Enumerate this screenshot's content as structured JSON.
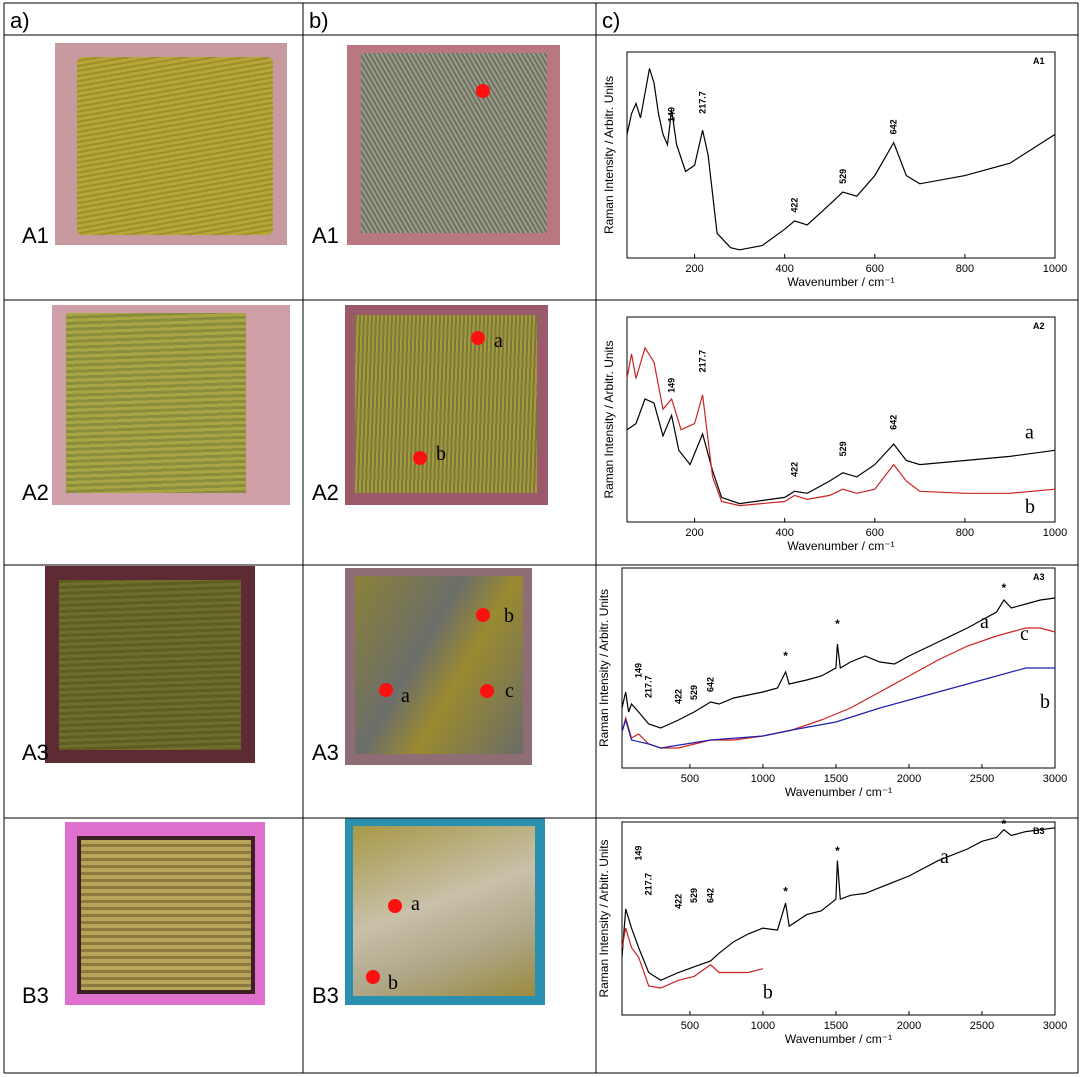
{
  "header": [
    "a)",
    "b)",
    "c)"
  ],
  "rows": [
    {
      "label_a": "A1",
      "label_b": "A1",
      "spots": []
    },
    {
      "label_a": "A2",
      "label_b": "A2",
      "spots": [
        "a",
        "b"
      ]
    },
    {
      "label_a": "A3",
      "label_b": "A3",
      "spots": [
        "b",
        "a",
        "c"
      ]
    },
    {
      "label_a": "B3",
      "label_b": "B3",
      "spots": [
        "a",
        "b"
      ]
    }
  ],
  "chart_data": [
    {
      "type": "line",
      "title": "A1",
      "xlabel": "Wavenumber / cm⁻¹",
      "ylabel": "Raman Intensity / Arbitr. Units",
      "xlim": [
        50,
        1000
      ],
      "xticks": [
        200,
        400,
        600,
        800,
        1000
      ],
      "ylim": [
        0,
        100
      ],
      "series": [
        {
          "color": "#000000",
          "x": [
            50,
            60,
            70,
            80,
            90,
            100,
            110,
            120,
            130,
            140,
            149,
            160,
            180,
            200,
            217.7,
            230,
            250,
            280,
            300,
            350,
            400,
            422,
            450,
            500,
            529,
            560,
            600,
            642,
            670,
            700,
            800,
            900,
            1000
          ],
          "values": [
            60,
            70,
            75,
            68,
            80,
            92,
            85,
            70,
            60,
            55,
            72,
            55,
            42,
            45,
            62,
            50,
            12,
            5,
            4,
            6,
            14,
            18,
            16,
            26,
            32,
            30,
            40,
            56,
            40,
            36,
            40,
            46,
            60
          ]
        }
      ],
      "annotations": [
        {
          "x": 149,
          "y": 66,
          "text": "149"
        },
        {
          "x": 217.7,
          "y": 70,
          "text": "217.7"
        },
        {
          "x": 422,
          "y": 22,
          "text": "422"
        },
        {
          "x": 529,
          "y": 36,
          "text": "529"
        },
        {
          "x": 642,
          "y": 60,
          "text": "642"
        }
      ]
    },
    {
      "type": "line",
      "title": "A2",
      "xlabel": "Wavenumber / cm⁻¹",
      "ylabel": "Raman Intensity / Arbitr. Units",
      "xlim": [
        50,
        1000
      ],
      "xticks": [
        200,
        400,
        600,
        800,
        1000
      ],
      "ylim": [
        0,
        100
      ],
      "series": [
        {
          "name": "a",
          "color": "#000000",
          "x": [
            50,
            70,
            90,
            110,
            130,
            149,
            165,
            190,
            217.7,
            240,
            260,
            300,
            400,
            422,
            450,
            500,
            529,
            560,
            600,
            642,
            670,
            700,
            800,
            900,
            1000
          ],
          "values": [
            45,
            48,
            60,
            58,
            42,
            52,
            35,
            28,
            43,
            25,
            12,
            9,
            12,
            15,
            14,
            20,
            24,
            22,
            28,
            38,
            30,
            28,
            30,
            32,
            35
          ]
        },
        {
          "name": "b",
          "color": "#cc2222",
          "x": [
            50,
            60,
            70,
            90,
            110,
            130,
            149,
            170,
            200,
            217.7,
            240,
            260,
            300,
            400,
            422,
            450,
            500,
            529,
            560,
            600,
            642,
            670,
            700,
            800,
            900,
            1000
          ],
          "values": [
            70,
            82,
            70,
            85,
            78,
            55,
            60,
            45,
            48,
            62,
            22,
            10,
            8,
            10,
            13,
            11,
            13,
            16,
            14,
            16,
            28,
            20,
            15,
            14,
            14,
            16
          ]
        }
      ],
      "annotations": [
        {
          "x": 149,
          "y": 63,
          "text": "149"
        },
        {
          "x": 217.7,
          "y": 73,
          "text": "217.7"
        },
        {
          "x": 422,
          "y": 22,
          "text": "422"
        },
        {
          "x": 529,
          "y": 32,
          "text": "529"
        },
        {
          "x": 642,
          "y": 45,
          "text": "642"
        }
      ]
    },
    {
      "type": "line",
      "title": "A3",
      "xlabel": "Wavenumber / cm⁻¹",
      "ylabel": "Raman Intensity / Arbitr. Units",
      "xlim": [
        35,
        3000
      ],
      "xticks": [
        500,
        1000,
        1500,
        2000,
        2500,
        3000
      ],
      "ylim": [
        0,
        100
      ],
      "series": [
        {
          "name": "a",
          "color": "#000000",
          "x": [
            35,
            60,
            80,
            100,
            149,
            217.7,
            300,
            422,
            529,
            642,
            700,
            800,
            1000,
            1100,
            1155,
            1180,
            1300,
            1400,
            1500,
            1510,
            1530,
            1600,
            1700,
            1800,
            1900,
            2000,
            2200,
            2400,
            2500,
            2600,
            2650,
            2700,
            2800,
            2900,
            3000
          ],
          "values": [
            30,
            38,
            28,
            32,
            28,
            22,
            20,
            24,
            28,
            33,
            32,
            35,
            38,
            40,
            48,
            42,
            44,
            46,
            50,
            62,
            50,
            53,
            56,
            53,
            52,
            56,
            63,
            70,
            74,
            78,
            84,
            80,
            82,
            84,
            85
          ]
        },
        {
          "name": "c",
          "color": "#d02020",
          "x": [
            35,
            60,
            100,
            149,
            217.7,
            300,
            422,
            642,
            800,
            1000,
            1200,
            1400,
            1600,
            1800,
            2000,
            2200,
            2400,
            2600,
            2800,
            2900,
            3000
          ],
          "values": [
            18,
            25,
            15,
            17,
            12,
            10,
            10,
            14,
            14,
            16,
            19,
            24,
            30,
            38,
            46,
            54,
            61,
            66,
            70,
            70,
            68
          ]
        },
        {
          "name": "b",
          "color": "#2020b0",
          "x": [
            35,
            60,
            100,
            217.7,
            300,
            642,
            1000,
            1200,
            1500,
            1800,
            2000,
            2200,
            2400,
            2600,
            2800,
            3000
          ],
          "values": [
            18,
            24,
            14,
            12,
            10,
            14,
            16,
            19,
            23,
            30,
            34,
            38,
            42,
            46,
            50,
            50
          ]
        }
      ],
      "annotations": [
        {
          "x": 149,
          "y": 45,
          "text": "149"
        },
        {
          "x": 217.7,
          "y": 35,
          "text": "217.7"
        },
        {
          "x": 422,
          "y": 32,
          "text": "422"
        },
        {
          "x": 529,
          "y": 34,
          "text": "529"
        },
        {
          "x": 642,
          "y": 38,
          "text": "642"
        },
        {
          "x": 1155,
          "y": 54,
          "text": "*"
        },
        {
          "x": 1510,
          "y": 70,
          "text": "*"
        },
        {
          "x": 2650,
          "y": 88,
          "text": "*"
        }
      ]
    },
    {
      "type": "line",
      "title": "B3",
      "xlabel": "Wavenumber / cm⁻¹",
      "ylabel": "Raman Intensity / Arbitr. Units",
      "xlim": [
        35,
        3000
      ],
      "xticks": [
        500,
        1000,
        1500,
        2000,
        2500,
        3000
      ],
      "ylim": [
        0,
        100
      ],
      "series": [
        {
          "name": "a",
          "color": "#000000",
          "x": [
            35,
            60,
            100,
            149,
            217.7,
            300,
            422,
            529,
            642,
            700,
            800,
            900,
            1000,
            1100,
            1155,
            1180,
            1300,
            1400,
            1500,
            1510,
            1530,
            1600,
            1700,
            1800,
            2000,
            2200,
            2400,
            2500,
            2600,
            2650,
            2700,
            2800,
            3000
          ],
          "values": [
            30,
            55,
            45,
            35,
            22,
            18,
            22,
            25,
            28,
            32,
            38,
            42,
            45,
            44,
            58,
            46,
            52,
            54,
            60,
            80,
            60,
            62,
            63,
            66,
            72,
            80,
            86,
            90,
            92,
            96,
            93,
            95,
            97
          ]
        },
        {
          "name": "b",
          "color": "#cc2222",
          "x": [
            35,
            60,
            100,
            149,
            217.7,
            300,
            422,
            529,
            642,
            700,
            800,
            900,
            1000
          ],
          "values": [
            35,
            45,
            35,
            30,
            15,
            14,
            18,
            20,
            26,
            22,
            22,
            22,
            24
          ]
        }
      ],
      "annotations": [
        {
          "x": 149,
          "y": 80,
          "text": "149"
        },
        {
          "x": 217.7,
          "y": 62,
          "text": "217.7"
        },
        {
          "x": 422,
          "y": 55,
          "text": "422"
        },
        {
          "x": 529,
          "y": 58,
          "text": "529"
        },
        {
          "x": 642,
          "y": 58,
          "text": "642"
        },
        {
          "x": 1155,
          "y": 62,
          "text": "*"
        },
        {
          "x": 1510,
          "y": 83,
          "text": "*"
        },
        {
          "x": 2650,
          "y": 97,
          "text": "*"
        }
      ]
    }
  ]
}
